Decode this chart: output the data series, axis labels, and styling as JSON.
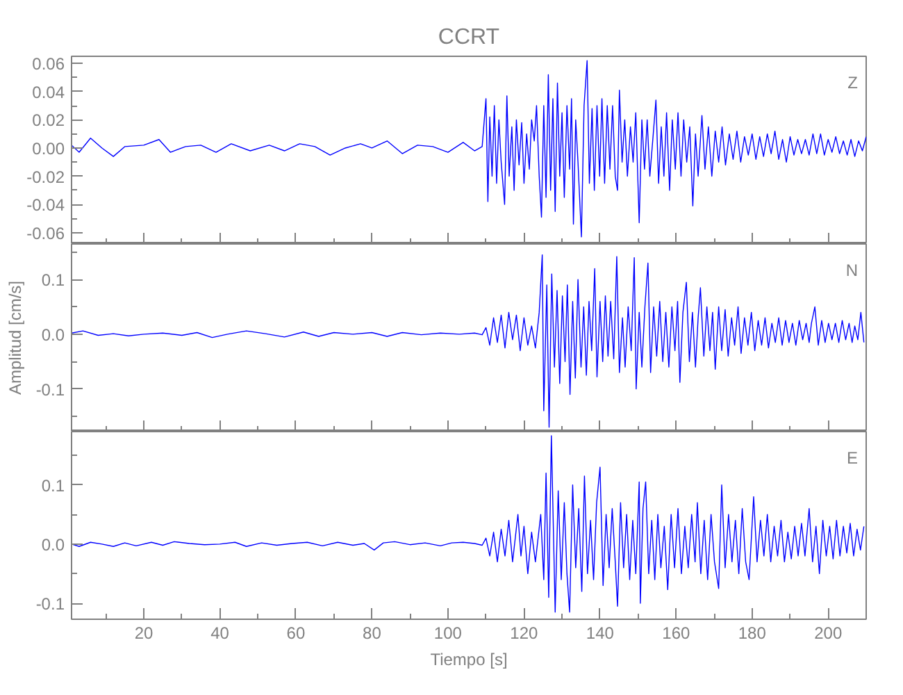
{
  "chart_data": [
    {
      "type": "line",
      "title": "CCRT",
      "annotations": [
        "Z"
      ],
      "xlim": [
        1,
        210
      ],
      "ylim": [
        -0.068,
        0.065
      ],
      "tick_labels": "y",
      "grid": false,
      "line_style": "solid",
      "marker": "none",
      "xticks": [
        {
          "value": 10,
          "label": null
        },
        20,
        {
          "value": 30,
          "label": null
        },
        40,
        {
          "value": 50,
          "label": null
        },
        60,
        {
          "value": 70,
          "label": null
        },
        80,
        {
          "value": 90,
          "label": null
        },
        100,
        {
          "value": 110,
          "label": null
        },
        120,
        {
          "value": 130,
          "label": null
        },
        140,
        {
          "value": 150,
          "label": null
        },
        160,
        {
          "value": 170,
          "label": null
        },
        180,
        {
          "value": 190,
          "label": null
        },
        200
      ],
      "yticks": [
        {
          "value": -0.06,
          "label": "-0.06"
        },
        {
          "value": -0.05,
          "label": null
        },
        {
          "value": -0.04,
          "label": "-0.04"
        },
        {
          "value": -0.03,
          "label": null
        },
        {
          "value": -0.02,
          "label": "-0.02"
        },
        {
          "value": -0.01,
          "label": null
        },
        {
          "value": 0,
          "label": "0.00"
        },
        {
          "value": 0.01,
          "label": null
        },
        {
          "value": 0.02,
          "label": "0.02"
        },
        {
          "value": 0.03,
          "label": null
        },
        {
          "value": 0.04,
          "label": "0.04"
        },
        {
          "value": 0.05,
          "label": null
        },
        {
          "value": 0.06,
          "label": "0.06"
        }
      ],
      "series": [
        {
          "color": "#0000ff",
          "x": [
            1,
            3,
            6,
            9,
            12,
            15,
            20,
            24,
            27,
            31,
            35,
            39,
            43,
            48,
            53,
            57,
            61,
            65,
            69,
            73,
            77,
            80,
            84,
            88,
            92,
            96,
            100,
            104,
            107,
            109,
            110,
            110.5,
            111,
            111.6,
            112.2,
            112.8,
            113.4,
            114,
            114.9,
            115.5,
            116.1,
            116.8,
            117.4,
            118,
            118.7,
            119.4,
            120,
            120.7,
            121.4,
            122,
            122.7,
            123.3,
            124,
            124.6,
            125.2,
            125.8,
            126.4,
            127,
            127.6,
            128.2,
            128.8,
            129.4,
            130,
            130.6,
            131.3,
            132,
            132.5,
            133,
            133.6,
            134.2,
            135.1,
            135.8,
            136.6,
            137.2,
            137.9,
            138.5,
            139.2,
            139.9,
            140.5,
            141.2,
            141.9,
            142.6,
            143.3,
            144,
            144.6,
            145.1,
            145.8,
            146.5,
            147.2,
            148,
            148.7,
            149.4,
            150.3,
            151,
            151.7,
            152.4,
            153.1,
            154,
            154.7,
            155.4,
            156.1,
            156.8,
            157.5,
            158.3,
            159,
            159.8,
            160.5,
            161.3,
            162,
            162.8,
            163.6,
            164.4,
            165.1,
            165.8,
            166.8,
            167.6,
            168.5,
            169.4,
            170.3,
            171.2,
            172.1,
            173,
            174,
            175,
            176,
            177,
            178,
            179,
            180,
            181,
            182,
            183,
            184,
            185,
            186,
            187,
            188,
            189,
            190,
            191,
            192,
            193,
            194,
            195,
            196,
            197,
            198,
            199,
            200,
            201,
            202,
            203,
            204,
            205,
            206,
            207,
            208,
            209,
            210
          ],
          "values": [
            0.002,
            -0.003,
            0.007,
            0.0,
            -0.006,
            0.001,
            0.002,
            0.006,
            -0.003,
            0.001,
            0.002,
            -0.003,
            0.003,
            -0.002,
            0.002,
            -0.002,
            0.003,
            0.001,
            -0.005,
            0.0,
            0.003,
            0.0,
            0.005,
            -0.004,
            0.002,
            0.001,
            -0.003,
            0.004,
            -0.002,
            0.001,
            0.035,
            -0.038,
            0.022,
            -0.02,
            0.03,
            -0.025,
            0.02,
            -0.01,
            -0.04,
            0.037,
            -0.02,
            0.015,
            -0.03,
            0.02,
            -0.012,
            0.018,
            -0.025,
            0.01,
            -0.015,
            0.02,
            0.005,
            0.03,
            -0.02,
            -0.049,
            0.03,
            -0.035,
            0.052,
            -0.03,
            0.035,
            -0.045,
            0.046,
            -0.02,
            0.025,
            -0.035,
            0.03,
            -0.015,
            0.035,
            -0.054,
            0.02,
            -0.01,
            -0.063,
            0.03,
            0.062,
            -0.025,
            0.028,
            -0.03,
            0.03,
            -0.02,
            0.035,
            -0.025,
            0.03,
            -0.015,
            0.03,
            -0.02,
            -0.03,
            0.041,
            -0.01,
            0.02,
            -0.02,
            0.015,
            -0.01,
            0.025,
            -0.053,
            0.02,
            -0.015,
            0.02,
            -0.02,
            0.01,
            0.034,
            -0.025,
            0.015,
            -0.02,
            0.025,
            -0.03,
            0.02,
            -0.015,
            0.025,
            -0.02,
            0.02,
            -0.01,
            0.015,
            -0.041,
            0.01,
            -0.02,
            0.023,
            -0.015,
            0.015,
            -0.02,
            0.012,
            -0.01,
            0.015,
            -0.012,
            0.01,
            -0.008,
            0.012,
            -0.01,
            0.008,
            -0.005,
            0.01,
            -0.008,
            0.008,
            -0.006,
            0.01,
            -0.004,
            0.012,
            -0.008,
            0.006,
            -0.01,
            0.008,
            -0.005,
            0.006,
            -0.004,
            0.006,
            -0.005,
            0.01,
            -0.004,
            0.01,
            -0.005,
            0.006,
            -0.003,
            0.008,
            -0.004,
            0.005,
            -0.005,
            0.006,
            -0.006,
            0.005,
            -0.002,
            0.008
          ]
        }
      ]
    },
    {
      "type": "line",
      "ylabel": "Amplitud [cm/s]",
      "annotations": [
        "N"
      ],
      "xlim": [
        1,
        210
      ],
      "ylim": [
        -0.178,
        0.165
      ],
      "tick_labels": "y",
      "grid": false,
      "line_style": "solid",
      "marker": "none",
      "xticks": [
        {
          "value": 10,
          "label": null
        },
        20,
        {
          "value": 30,
          "label": null
        },
        40,
        {
          "value": 50,
          "label": null
        },
        60,
        {
          "value": 70,
          "label": null
        },
        80,
        {
          "value": 90,
          "label": null
        },
        100,
        {
          "value": 110,
          "label": null
        },
        120,
        {
          "value": 130,
          "label": null
        },
        140,
        {
          "value": 150,
          "label": null
        },
        160,
        {
          "value": 170,
          "label": null
        },
        180,
        {
          "value": 190,
          "label": null
        },
        200
      ],
      "yticks": [
        {
          "value": -0.15,
          "label": null
        },
        {
          "value": -0.1,
          "label": "-0.1"
        },
        {
          "value": -0.05,
          "label": null
        },
        {
          "value": 0,
          "label": "0.0"
        },
        {
          "value": 0.05,
          "label": null
        },
        {
          "value": 0.1,
          "label": "0.1"
        },
        {
          "value": 0.15,
          "label": null
        }
      ],
      "series": [
        {
          "color": "#0000ff",
          "x": [
            1,
            4,
            8,
            12,
            16,
            20,
            25,
            30,
            34,
            38,
            42,
            47,
            52,
            57,
            62,
            66,
            70,
            75,
            80,
            84,
            88,
            93,
            98,
            103,
            107,
            109,
            110,
            111,
            112,
            113,
            114,
            115,
            116,
            117,
            118,
            119,
            120,
            121,
            122,
            123,
            124,
            124.8,
            125.2,
            126,
            126.6,
            127.3,
            128,
            128.7,
            129.4,
            130.1,
            130.8,
            131.4,
            132.1,
            132.8,
            133.5,
            134.2,
            135,
            135.7,
            136.4,
            137.1,
            137.8,
            138.6,
            139.2,
            140,
            140.7,
            141.4,
            142.1,
            142.8,
            143.6,
            144.4,
            145.1,
            145.9,
            146.6,
            147.4,
            148.2,
            149,
            149.5,
            150.3,
            151,
            151.8,
            152.6,
            153.3,
            154.1,
            154.9,
            155.7,
            156.5,
            157.3,
            158.1,
            158.9,
            159.7,
            160.4,
            161,
            161.8,
            162.7,
            163.5,
            164.3,
            165.1,
            165.8,
            166.4,
            167.3,
            168.1,
            168.9,
            169.6,
            170.3,
            171.2,
            172,
            172.9,
            173.7,
            174.6,
            175.4,
            176.3,
            177.1,
            178,
            178.9,
            179.8,
            180.7,
            181.6,
            182.5,
            183.4,
            184.3,
            185.2,
            186.1,
            187,
            187.9,
            188.8,
            189.7,
            190.6,
            191.5,
            192.4,
            193.3,
            194.2,
            195,
            195.6,
            196.5,
            197.4,
            198.3,
            199.2,
            200.1,
            201,
            201.9,
            202.8,
            203.7,
            204.6,
            205.5,
            206.3,
            207,
            207.8,
            208.6,
            209.4
          ],
          "values": [
            0.002,
            0.006,
            -0.002,
            0.001,
            -0.003,
            0.0,
            0.002,
            -0.002,
            0.003,
            -0.006,
            0.0,
            0.006,
            0.001,
            -0.005,
            0.004,
            -0.004,
            0.003,
            0.0,
            0.003,
            -0.004,
            0.003,
            -0.001,
            0.002,
            0.0,
            0.002,
            -0.001,
            0.012,
            -0.02,
            0.03,
            -0.015,
            0.035,
            -0.025,
            0.04,
            -0.01,
            0.035,
            -0.03,
            0.03,
            -0.02,
            0.015,
            -0.025,
            0.04,
            0.145,
            -0.14,
            0.09,
            -0.17,
            0.11,
            -0.06,
            0.08,
            -0.09,
            0.07,
            -0.05,
            0.09,
            -0.11,
            0.06,
            -0.08,
            0.1,
            -0.06,
            0.05,
            -0.075,
            0.06,
            -0.03,
            0.12,
            -0.078,
            0.06,
            -0.05,
            0.07,
            -0.04,
            0.06,
            -0.045,
            0.142,
            -0.07,
            0.03,
            -0.06,
            0.05,
            -0.03,
            0.14,
            -0.1,
            0.04,
            -0.06,
            0.05,
            0.13,
            -0.07,
            0.05,
            -0.04,
            0.06,
            -0.05,
            0.04,
            -0.06,
            0.05,
            -0.03,
            0.06,
            -0.088,
            0.04,
            0.095,
            -0.05,
            0.04,
            -0.06,
            0.03,
            0.085,
            -0.04,
            0.05,
            -0.03,
            0.04,
            -0.064,
            0.05,
            -0.03,
            0.045,
            -0.04,
            0.03,
            -0.02,
            0.05,
            -0.035,
            0.03,
            -0.02,
            0.04,
            -0.03,
            0.025,
            -0.02,
            0.03,
            -0.025,
            0.02,
            -0.015,
            0.03,
            -0.02,
            0.025,
            -0.015,
            0.02,
            -0.02,
            0.025,
            -0.01,
            0.02,
            -0.015,
            0.02,
            0.05,
            -0.02,
            0.025,
            -0.015,
            0.02,
            -0.01,
            0.02,
            -0.015,
            0.025,
            -0.01,
            0.02,
            -0.015,
            0.015,
            -0.01,
            0.04,
            -0.015
          ]
        }
      ]
    },
    {
      "type": "line",
      "xlabel": "Tiempo [s]",
      "annotations": [
        "E"
      ],
      "xlim": [
        1,
        210
      ],
      "ylim": [
        -0.127,
        0.19
      ],
      "grid": false,
      "line_style": "solid",
      "marker": "none",
      "xticks": [
        {
          "value": 10,
          "label": null
        },
        20,
        {
          "value": 30,
          "label": null
        },
        40,
        {
          "value": 50,
          "label": null
        },
        60,
        {
          "value": 70,
          "label": null
        },
        80,
        {
          "value": 90,
          "label": null
        },
        100,
        {
          "value": 110,
          "label": null
        },
        120,
        {
          "value": 130,
          "label": null
        },
        140,
        {
          "value": 150,
          "label": null
        },
        160,
        {
          "value": 170,
          "label": null
        },
        180,
        {
          "value": 190,
          "label": null
        },
        200
      ],
      "yticks": [
        {
          "value": -0.1,
          "label": "-0.1"
        },
        {
          "value": -0.05,
          "label": null
        },
        {
          "value": 0,
          "label": "0.0"
        },
        {
          "value": 0.05,
          "label": null
        },
        {
          "value": 0.1,
          "label": "0.1"
        },
        {
          "value": 0.15,
          "label": null
        }
      ],
      "series": [
        {
          "color": "#0000ff",
          "x": [
            1,
            3,
            6,
            9,
            12,
            15,
            18,
            22,
            25,
            28,
            32,
            36,
            40,
            44,
            47,
            51,
            55,
            59,
            63,
            67,
            71,
            75,
            78,
            80.6,
            83,
            86,
            90,
            94,
            98,
            101,
            104,
            107,
            109,
            110,
            111,
            112,
            113,
            114,
            115,
            116,
            117,
            118.4,
            119.2,
            120,
            121,
            122,
            123,
            124.4,
            125.2,
            125.8,
            126.5,
            127.2,
            128.2,
            129,
            129.8,
            130.6,
            131.3,
            132,
            132.8,
            133.6,
            134.4,
            135.2,
            135.9,
            136.7,
            137.5,
            138.3,
            139.1,
            140,
            140.8,
            141.6,
            142.4,
            143.2,
            144,
            144.6,
            145.4,
            146.2,
            147,
            147.8,
            148.6,
            149.4,
            150.3,
            150.6,
            151.3,
            152,
            152.8,
            153.6,
            154.4,
            155.2,
            156,
            156.9,
            157.8,
            158.7,
            159.6,
            160.5,
            161.4,
            162.3,
            163.2,
            164.1,
            165,
            165.6,
            166.5,
            167.4,
            168.3,
            169.2,
            170.1,
            171.2,
            172,
            172.9,
            173.8,
            174.7,
            175.6,
            176.5,
            177.4,
            178.3,
            179.2,
            180.4,
            181.3,
            182.2,
            183.1,
            184,
            184.9,
            185.8,
            186.7,
            187.6,
            188.5,
            189.4,
            190.3,
            191.2,
            192.1,
            193,
            193.9,
            195,
            195.9,
            196.8,
            197.7,
            198.6,
            199.5,
            200.4,
            201.3,
            202.2,
            203.1,
            204,
            204.9,
            205.8,
            206.7,
            207.6,
            208.5,
            209.4
          ],
          "values": [
            0.0,
            -0.004,
            0.003,
            0.0,
            -0.004,
            0.002,
            -0.003,
            0.003,
            -0.002,
            0.004,
            0.001,
            -0.001,
            0.0,
            0.003,
            -0.004,
            0.002,
            -0.002,
            0.001,
            0.003,
            -0.003,
            0.003,
            -0.002,
            0.001,
            -0.01,
            0.002,
            0.004,
            -0.001,
            0.002,
            -0.003,
            0.002,
            0.003,
            0.001,
            -0.002,
            0.01,
            -0.02,
            0.02,
            -0.03,
            0.025,
            -0.02,
            0.04,
            -0.03,
            0.05,
            -0.02,
            0.03,
            -0.05,
            0.02,
            -0.03,
            0.05,
            -0.06,
            0.12,
            -0.09,
            0.183,
            -0.115,
            0.09,
            -0.06,
            0.07,
            -0.05,
            -0.115,
            0.1,
            -0.04,
            0.06,
            -0.08,
            0.115,
            -0.05,
            0.04,
            -0.06,
            0.07,
            0.13,
            -0.07,
            0.05,
            -0.04,
            0.06,
            -0.03,
            -0.105,
            0.07,
            -0.04,
            0.05,
            -0.06,
            0.04,
            -0.05,
            0.105,
            -0.1,
            0.06,
            0.105,
            -0.05,
            0.04,
            -0.06,
            0.05,
            -0.04,
            0.03,
            -0.077,
            0.05,
            -0.04,
            0.06,
            -0.05,
            0.03,
            -0.04,
            0.05,
            -0.03,
            0.07,
            -0.05,
            0.04,
            -0.06,
            0.05,
            -0.03,
            -0.075,
            0.1,
            -0.04,
            0.05,
            -0.03,
            0.04,
            -0.05,
            0.06,
            -0.03,
            -0.06,
            0.08,
            -0.03,
            0.04,
            -0.02,
            0.05,
            -0.03,
            0.03,
            -0.02,
            0.04,
            -0.03,
            0.02,
            -0.025,
            0.03,
            -0.02,
            0.035,
            -0.02,
            0.06,
            -0.03,
            0.03,
            -0.05,
            0.04,
            -0.02,
            0.03,
            -0.025,
            0.04,
            -0.02,
            0.03,
            -0.015,
            0.035,
            -0.02,
            0.025,
            -0.01,
            0.03
          ]
        }
      ]
    }
  ]
}
